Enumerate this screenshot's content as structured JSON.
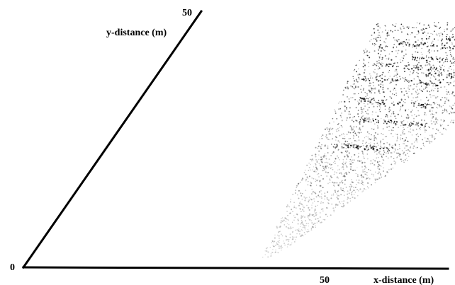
{
  "chart_data": {
    "type": "scatter",
    "xlabel": "x-distance (m)",
    "ylabel": "y-distance (m)",
    "origin_label": "0",
    "x_tick_label": "50",
    "y_tick_label": "50",
    "xlim": [
      0,
      70
    ],
    "ylim": [
      0,
      50
    ],
    "x_tick_value": 50,
    "y_tick_value": 50,
    "projection": "oblique",
    "grid": false,
    "legend": "none",
    "point_color": "#000000",
    "point_cloud_extent": {
      "y_range": [
        2,
        48
      ],
      "x_range_near_far_end": [
        30,
        65
      ]
    }
  }
}
